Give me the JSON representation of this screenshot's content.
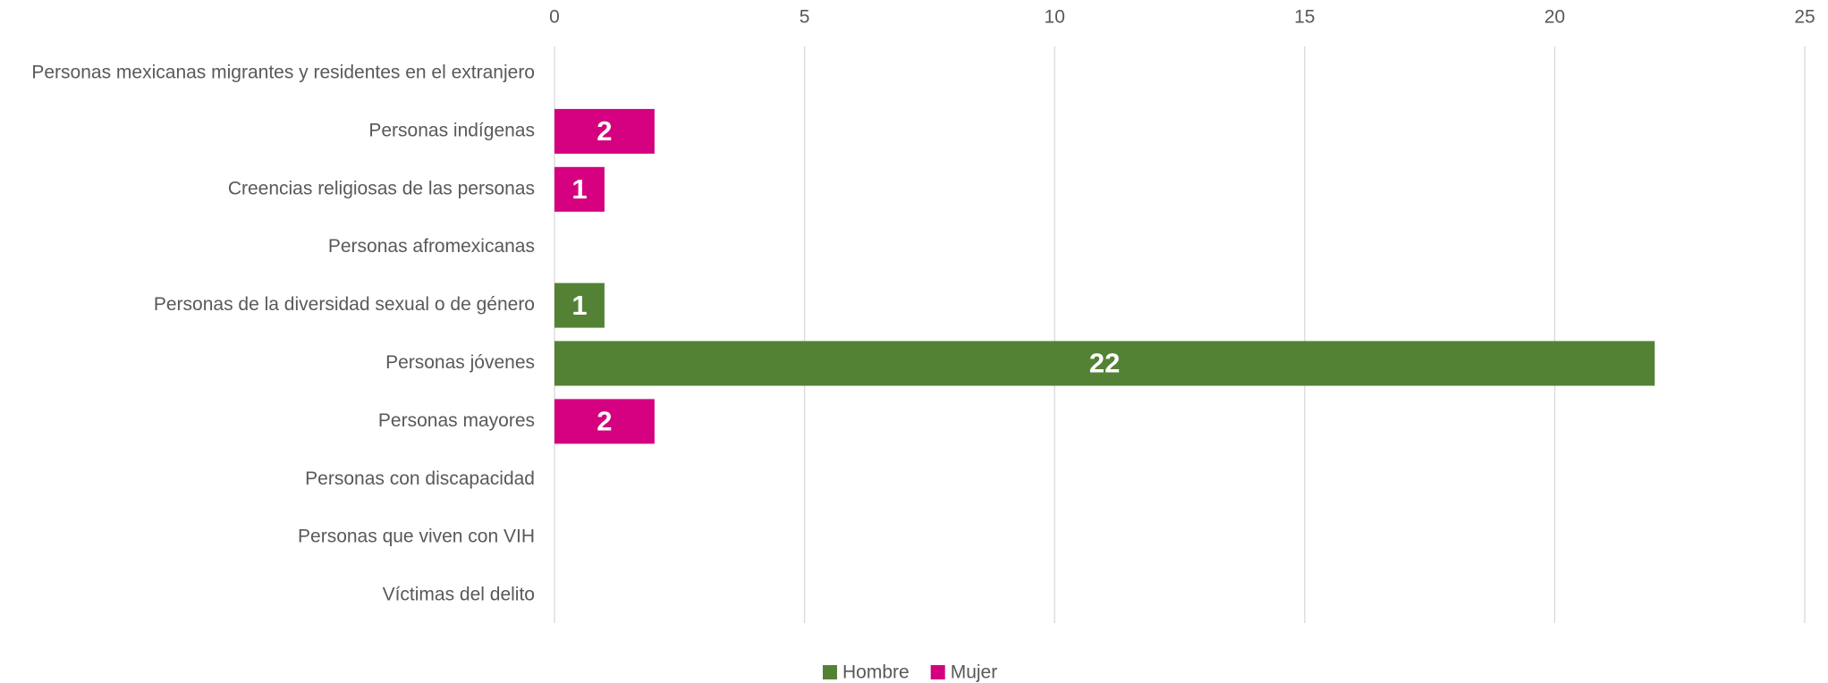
{
  "chart_data": {
    "type": "hbar_stacked",
    "categories": [
      "Personas mexicanas migrantes y residentes en el extranjero",
      "Personas indígenas",
      "Creencias religiosas de las personas",
      "Personas afromexicanas",
      "Personas de la diversidad sexual o de género",
      "Personas jóvenes",
      "Personas mayores",
      "Personas con discapacidad",
      "Personas que viven con VIH",
      "Víctimas del delito"
    ],
    "series": [
      {
        "name": "Hombre",
        "color": "#548235",
        "values": [
          0,
          0,
          0,
          0,
          1,
          22,
          0,
          0,
          0,
          0
        ]
      },
      {
        "name": "Mujer",
        "color": "#d5007f",
        "values": [
          0,
          2,
          1,
          0,
          0,
          0,
          2,
          0,
          0,
          0
        ]
      }
    ],
    "xlim": [
      0,
      25
    ],
    "xticks": [
      0,
      5,
      10,
      15,
      20,
      25
    ],
    "grid": true,
    "legend": "bottom"
  }
}
